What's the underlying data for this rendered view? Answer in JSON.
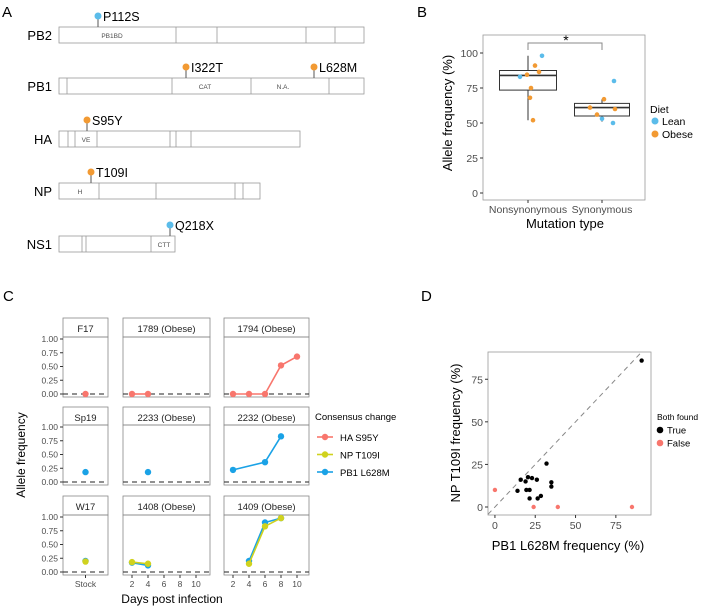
{
  "panels": {
    "a": "A",
    "b": "B",
    "c": "C",
    "d": "D"
  },
  "colors": {
    "lean": "#5BBCEA",
    "obese": "#F29A33",
    "ha": "#F8766D",
    "np": "#D0D21E",
    "pb1": "#1AA2E6",
    "true": "#000000",
    "false": "#F8766D",
    "box": "#333333",
    "frame": "#999999"
  },
  "panel_a": {
    "proteins": [
      {
        "name": "PB2",
        "domains": [
          "PB1BD"
        ],
        "mutations": [
          {
            "label": "P112S",
            "diet": "Lean"
          }
        ]
      },
      {
        "name": "PB1",
        "domains": [
          "CAT",
          "N.A."
        ],
        "mutations": [
          {
            "label": "I322T",
            "diet": "Obese"
          },
          {
            "label": "L628M",
            "diet": "Obese"
          }
        ]
      },
      {
        "name": "HA",
        "domains": [
          "VE"
        ],
        "mutations": [
          {
            "label": "S95Y",
            "diet": "Obese"
          }
        ]
      },
      {
        "name": "NP",
        "domains": [
          "H"
        ],
        "mutations": [
          {
            "label": "T109I",
            "diet": "Obese"
          }
        ]
      },
      {
        "name": "NS1",
        "domains": [
          "CTT"
        ],
        "mutations": [
          {
            "label": "Q218X",
            "diet": "Lean"
          }
        ]
      }
    ]
  },
  "chart_data": [
    {
      "type": "box",
      "xlabel": "Mutation type",
      "ylabel": "Allele frequency (%)",
      "categories": [
        "Nonsynonymous",
        "Synonymous"
      ],
      "ylim": [
        0,
        100
      ],
      "yticks": [
        "0",
        "25",
        "50",
        "75",
        "100"
      ],
      "grid": false,
      "legend": {
        "title": "Diet",
        "entries": [
          "Lean",
          "Obese"
        ],
        "position": "right"
      },
      "annotation": "*",
      "boxes": [
        {
          "category": "Nonsynonymous",
          "min": 52,
          "q1": 73.5,
          "median": 84,
          "q3": 87.5,
          "max": 98
        },
        {
          "category": "Synonymous",
          "min": 51,
          "q1": 55,
          "median": 61,
          "q3": 64,
          "max": 67
        }
      ],
      "points": [
        {
          "category": "Nonsynonymous",
          "diet": "Lean",
          "value": 83
        },
        {
          "category": "Nonsynonymous",
          "diet": "Lean",
          "value": 98
        },
        {
          "category": "Nonsynonymous",
          "diet": "Obese",
          "value": 84.5
        },
        {
          "category": "Nonsynonymous",
          "diet": "Obese",
          "value": 91
        },
        {
          "category": "Nonsynonymous",
          "diet": "Obese",
          "value": 86.5
        },
        {
          "category": "Nonsynonymous",
          "diet": "Obese",
          "value": 75
        },
        {
          "category": "Nonsynonymous",
          "diet": "Obese",
          "value": 68
        },
        {
          "category": "Nonsynonymous",
          "diet": "Obese",
          "value": 52
        },
        {
          "category": "Synonymous",
          "diet": "Lean",
          "value": 80
        },
        {
          "category": "Synonymous",
          "diet": "Lean",
          "value": 50
        },
        {
          "category": "Synonymous",
          "diet": "Lean",
          "value": 53
        },
        {
          "category": "Synonymous",
          "diet": "Obese",
          "value": 61
        },
        {
          "category": "Synonymous",
          "diet": "Obese",
          "value": 56
        },
        {
          "category": "Synonymous",
          "diet": "Obese",
          "value": 67
        },
        {
          "category": "Synonymous",
          "diet": "Obese",
          "value": 60
        }
      ]
    },
    {
      "type": "line",
      "xlabel": "Days post infection",
      "ylabel": "Allele frequency",
      "yticks": [
        "0.00",
        "0.25",
        "0.50",
        "0.75",
        "1.00"
      ],
      "xticks_stock": [
        "Stock"
      ],
      "xticks_days": [
        "2",
        "4",
        "6",
        "8",
        "10"
      ],
      "ylim": [
        0,
        1
      ],
      "legend": {
        "title": "Consensus change",
        "entries": [
          "HA S95Y",
          "NP T109I",
          "PB1 L628M"
        ],
        "position": "right"
      },
      "facets": [
        {
          "label": "F17",
          "series": [
            {
              "name": "HA S95Y",
              "x": [
                "Stock"
              ],
              "y": [
                0
              ]
            }
          ]
        },
        {
          "label": "1789 (Obese)",
          "series": [
            {
              "name": "HA S95Y",
              "x": [
                2,
                4
              ],
              "y": [
                0,
                0
              ]
            }
          ]
        },
        {
          "label": "1794 (Obese)",
          "series": [
            {
              "name": "HA S95Y",
              "x": [
                2,
                4,
                6,
                8,
                10
              ],
              "y": [
                0,
                0,
                0,
                0.52,
                0.68
              ]
            }
          ]
        },
        {
          "label": "Sp19",
          "series": [
            {
              "name": "PB1 L628M",
              "x": [
                "Stock"
              ],
              "y": [
                0.18
              ]
            }
          ]
        },
        {
          "label": "2233 (Obese)",
          "series": [
            {
              "name": "PB1 L628M",
              "x": [
                4
              ],
              "y": [
                0.18
              ]
            }
          ]
        },
        {
          "label": "2232 (Obese)",
          "series": [
            {
              "name": "PB1 L628M",
              "x": [
                2,
                6,
                8
              ],
              "y": [
                0.22,
                0.36,
                0.83
              ]
            }
          ]
        },
        {
          "label": "W17",
          "series": [
            {
              "name": "PB1 L628M",
              "x": [
                "Stock"
              ],
              "y": [
                0.2
              ]
            },
            {
              "name": "NP T109I",
              "x": [
                "Stock"
              ],
              "y": [
                0.19
              ]
            }
          ]
        },
        {
          "label": "1408 (Obese)",
          "series": [
            {
              "name": "PB1 L628M",
              "x": [
                2,
                4
              ],
              "y": [
                0.17,
                0.12
              ]
            },
            {
              "name": "NP T109I",
              "x": [
                2,
                4
              ],
              "y": [
                0.18,
                0.15
              ]
            }
          ]
        },
        {
          "label": "1409 (Obese)",
          "series": [
            {
              "name": "PB1 L628M",
              "x": [
                4,
                6,
                8
              ],
              "y": [
                0.2,
                0.9,
                0.98
              ]
            },
            {
              "name": "NP T109I",
              "x": [
                4,
                6,
                8
              ],
              "y": [
                0.15,
                0.83,
                0.98
              ]
            }
          ]
        }
      ]
    },
    {
      "type": "scatter",
      "xlabel": "PB1 L628M frequency (%)",
      "ylabel": "NP T109I frequency (%)",
      "xticks": [
        "0",
        "25",
        "50",
        "75"
      ],
      "yticks": [
        "0",
        "25",
        "50",
        "75"
      ],
      "xlim": [
        -4.3,
        96.8
      ],
      "ylim": [
        -4.7,
        91
      ],
      "reference_line": "y = x (dashed)",
      "legend": {
        "title": "Both found",
        "entries": [
          "True",
          "False"
        ],
        "position": "right"
      },
      "points": [
        {
          "x": 91,
          "y": 86,
          "both": "True"
        },
        {
          "x": 32,
          "y": 25.5,
          "both": "True"
        },
        {
          "x": 16,
          "y": 16,
          "both": "True"
        },
        {
          "x": 19,
          "y": 15,
          "both": "True"
        },
        {
          "x": 20.5,
          "y": 17.5,
          "both": "True"
        },
        {
          "x": 23,
          "y": 17,
          "both": "True"
        },
        {
          "x": 26,
          "y": 16,
          "both": "True"
        },
        {
          "x": 14,
          "y": 9.5,
          "both": "True"
        },
        {
          "x": 19.5,
          "y": 10,
          "both": "True"
        },
        {
          "x": 21.5,
          "y": 10,
          "both": "True"
        },
        {
          "x": 35,
          "y": 14.5,
          "both": "True"
        },
        {
          "x": 35,
          "y": 12,
          "both": "True"
        },
        {
          "x": 21.5,
          "y": 5,
          "both": "True"
        },
        {
          "x": 26.5,
          "y": 5,
          "both": "True"
        },
        {
          "x": 28.5,
          "y": 6.5,
          "both": "True"
        },
        {
          "x": 0,
          "y": 10,
          "both": "False"
        },
        {
          "x": 24,
          "y": 0,
          "both": "False"
        },
        {
          "x": 39,
          "y": 0,
          "both": "False"
        },
        {
          "x": 85,
          "y": 0,
          "both": "False"
        }
      ]
    }
  ]
}
